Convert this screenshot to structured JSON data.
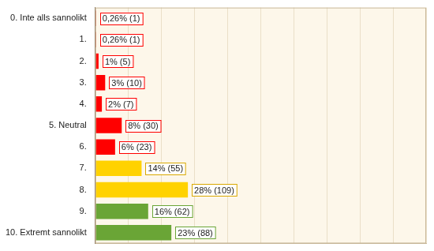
{
  "chart_data": {
    "type": "bar",
    "orientation": "horizontal",
    "categories": [
      "0. Inte alls sannolikt",
      "1.",
      "2.",
      "3.",
      "4.",
      "5. Neutral",
      "6.",
      "7.",
      "8.",
      "9.",
      "10. Extremt sannolikt"
    ],
    "values": [
      0.26,
      0.26,
      1,
      3,
      2,
      8,
      6,
      14,
      28,
      16,
      23
    ],
    "value_labels": [
      "0,26% (1)",
      "0,26% (1)",
      "1% (5)",
      "3% (10)",
      "2% (7)",
      "8% (30)",
      "6% (23)",
      "14% (55)",
      "28% (109)",
      "16% (62)",
      "23% (88)"
    ],
    "colors": [
      "#ff0000",
      "#ff0000",
      "#ff0000",
      "#ff0000",
      "#ff0000",
      "#ff0000",
      "#ff0000",
      "#ffd200",
      "#ffd200",
      "#6aa536",
      "#6aa536"
    ],
    "xlim": [
      0,
      100
    ],
    "xticks": [
      0,
      10,
      20,
      30,
      40,
      50,
      60,
      70,
      80,
      90,
      100
    ],
    "grid": true,
    "data_labels": true,
    "tick_labels": "y"
  }
}
